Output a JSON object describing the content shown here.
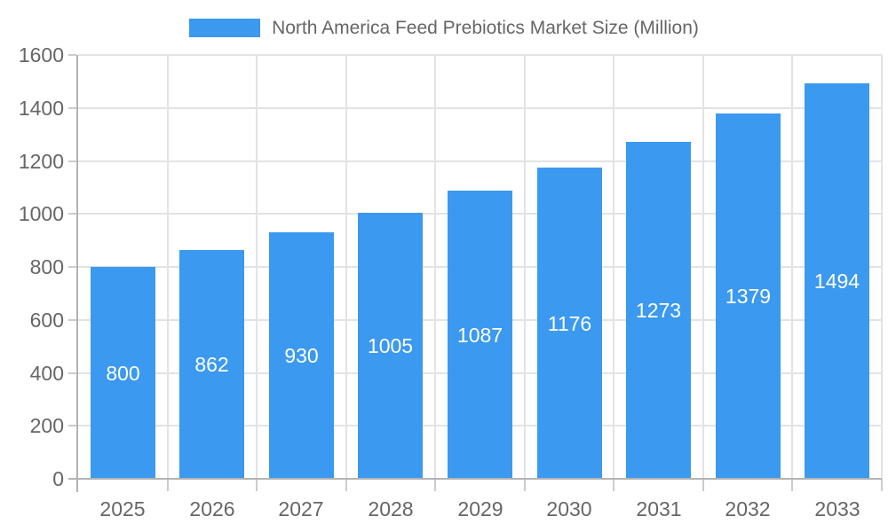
{
  "chart_data": {
    "type": "bar",
    "title": "North America Feed Prebiotics Market Size (Million)",
    "legend": [
      "North America Feed Prebiotics Market Size (Million)"
    ],
    "legend_position": "top-center",
    "categories": [
      "2025",
      "2026",
      "2027",
      "2028",
      "2029",
      "2030",
      "2031",
      "2032",
      "2033"
    ],
    "values": [
      800,
      862,
      930,
      1005,
      1087,
      1176,
      1273,
      1379,
      1494
    ],
    "xlabel": "",
    "ylabel": "",
    "ylim": [
      0,
      1600
    ],
    "ytick_step": 200,
    "yticks": [
      0,
      200,
      400,
      600,
      800,
      1000,
      1200,
      1400,
      1600
    ],
    "grid": true,
    "value_label_position": "inside-center",
    "colors": {
      "bar": "#3B99F0",
      "value_label": "#FFFFFF",
      "axis_text": "#666666",
      "legend_text": "#666666",
      "gridline": "#E3E3E3",
      "axis_line": "#B3B3B3",
      "tick": "#CCCCCC",
      "background": "#FFFFFF"
    }
  }
}
